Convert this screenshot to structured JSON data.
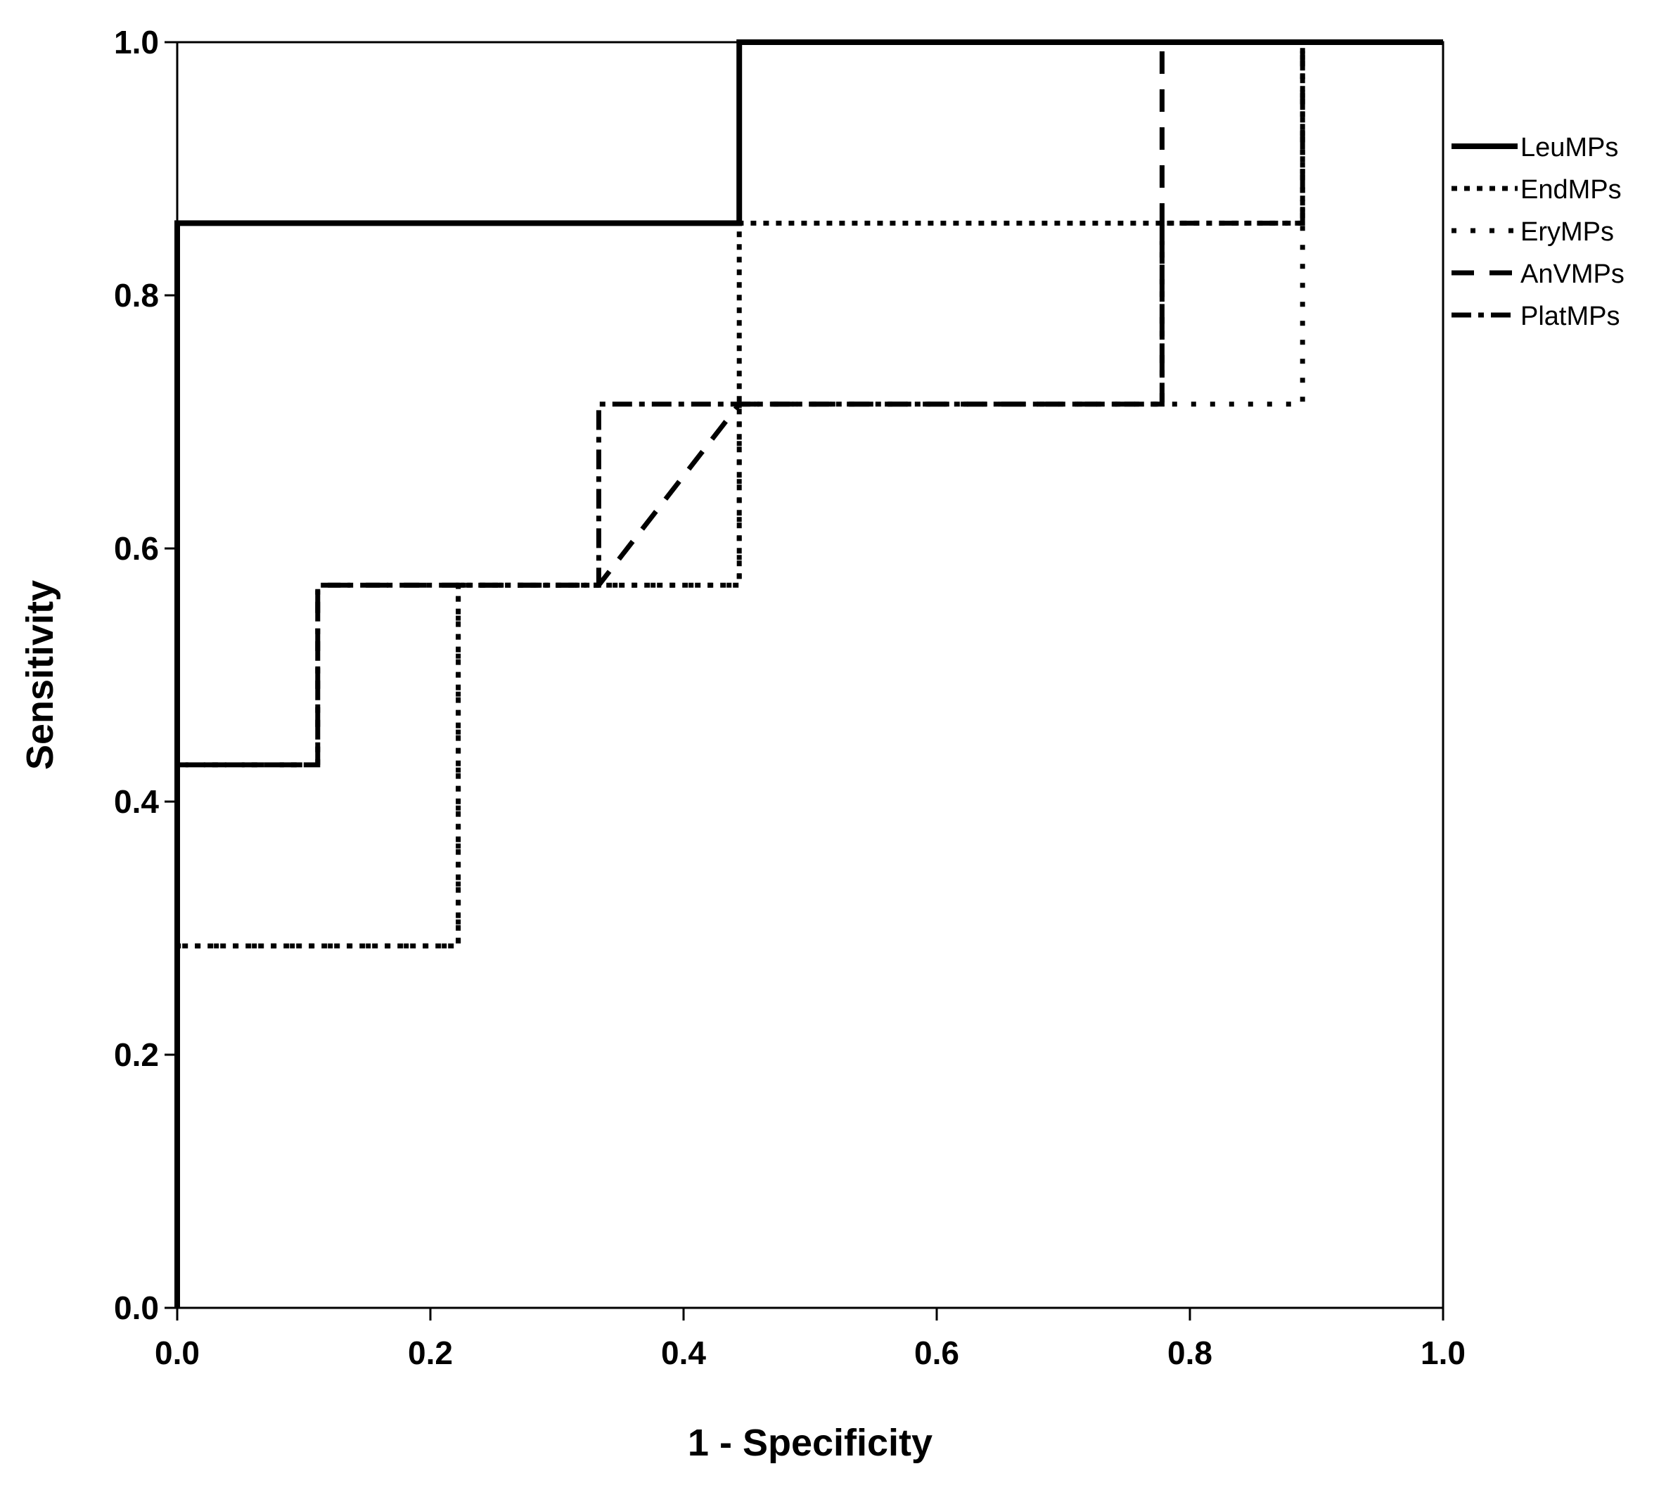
{
  "chart_data": {
    "type": "line",
    "xlabel": "1 - Specificity",
    "ylabel": "Sensitivity",
    "xlim": [
      0.0,
      1.0
    ],
    "ylim": [
      0.0,
      1.0
    ],
    "xticks": [
      "0.0",
      "0.2",
      "0.4",
      "0.6",
      "0.8",
      "1.0"
    ],
    "yticks": [
      "0.0",
      "0.2",
      "0.4",
      "0.6",
      "0.8",
      "1.0"
    ],
    "grid": false,
    "legend_position": "right",
    "series": [
      {
        "name": "LeuMPs",
        "style": "solid",
        "x": [
          0.0,
          0.0,
          0.444,
          0.444,
          1.0
        ],
        "y": [
          0.0,
          0.857,
          0.857,
          1.0,
          1.0
        ]
      },
      {
        "name": "EndMPs",
        "style": "dotted",
        "x": [
          0.0,
          0.0,
          0.222,
          0.222,
          0.444,
          0.444,
          0.889,
          0.889,
          1.0
        ],
        "y": [
          0.0,
          0.286,
          0.286,
          0.571,
          0.571,
          0.857,
          0.857,
          1.0,
          1.0
        ]
      },
      {
        "name": "EryMPs",
        "style": "sparse-dotted",
        "x": [
          0.0,
          0.0,
          0.222,
          0.222,
          0.444,
          0.444,
          0.889,
          0.889,
          1.0
        ],
        "y": [
          0.0,
          0.286,
          0.286,
          0.571,
          0.571,
          0.714,
          0.714,
          1.0,
          1.0
        ]
      },
      {
        "name": "AnVMPs",
        "style": "dashed",
        "x": [
          0.0,
          0.0,
          0.111,
          0.111,
          0.333,
          0.444,
          0.778,
          0.778,
          1.0
        ],
        "y": [
          0.0,
          0.429,
          0.429,
          0.571,
          0.571,
          0.714,
          0.714,
          1.0,
          1.0
        ]
      },
      {
        "name": "PlatMPs",
        "style": "dash-dot",
        "x": [
          0.0,
          0.0,
          0.111,
          0.111,
          0.333,
          0.333,
          0.778,
          0.778,
          0.889,
          0.889,
          1.0
        ],
        "y": [
          0.0,
          0.429,
          0.429,
          0.571,
          0.571,
          0.714,
          0.714,
          0.857,
          0.857,
          1.0,
          1.0
        ]
      }
    ]
  }
}
